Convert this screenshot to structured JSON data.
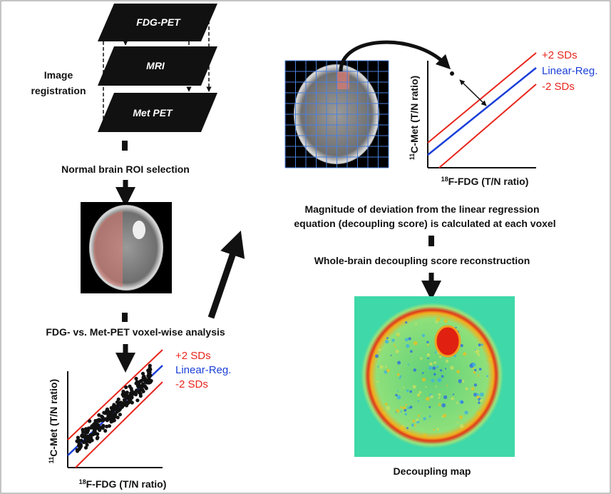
{
  "registration": {
    "layers": [
      "FDG-PET",
      "MRI",
      "Met PET"
    ],
    "label": [
      "Image",
      "registration"
    ]
  },
  "steps": {
    "roi_selection": "Normal brain ROI selection",
    "voxel_analysis": "FDG- vs. Met-PET voxel-wise analysis",
    "deviation": [
      "Magnitude of deviation from the linear regression",
      "equation (decoupling score) is calculated at each voxel"
    ],
    "reconstruction": "Whole-brain decoupling score reconstruction",
    "map_caption": "Decoupling map"
  },
  "plots": [
    {
      "legend": [
        "+2 SDs",
        "Linear-Reg.",
        "-2 SDs"
      ],
      "y_axis": {
        "isotope": "11",
        "label": "C-Met (T/N ratio)"
      },
      "x_axis": {
        "isotope": "18",
        "label": "F-FDG (T/N ratio)"
      }
    },
    {
      "legend": [
        "+2 SDs",
        "Linear-Reg.",
        "-2 SDs"
      ],
      "y_axis": {
        "isotope": "11",
        "label": "C-Met (T/N ratio)"
      },
      "x_axis": {
        "isotope": "18",
        "label": "F-FDG (T/N ratio)"
      }
    }
  ]
}
